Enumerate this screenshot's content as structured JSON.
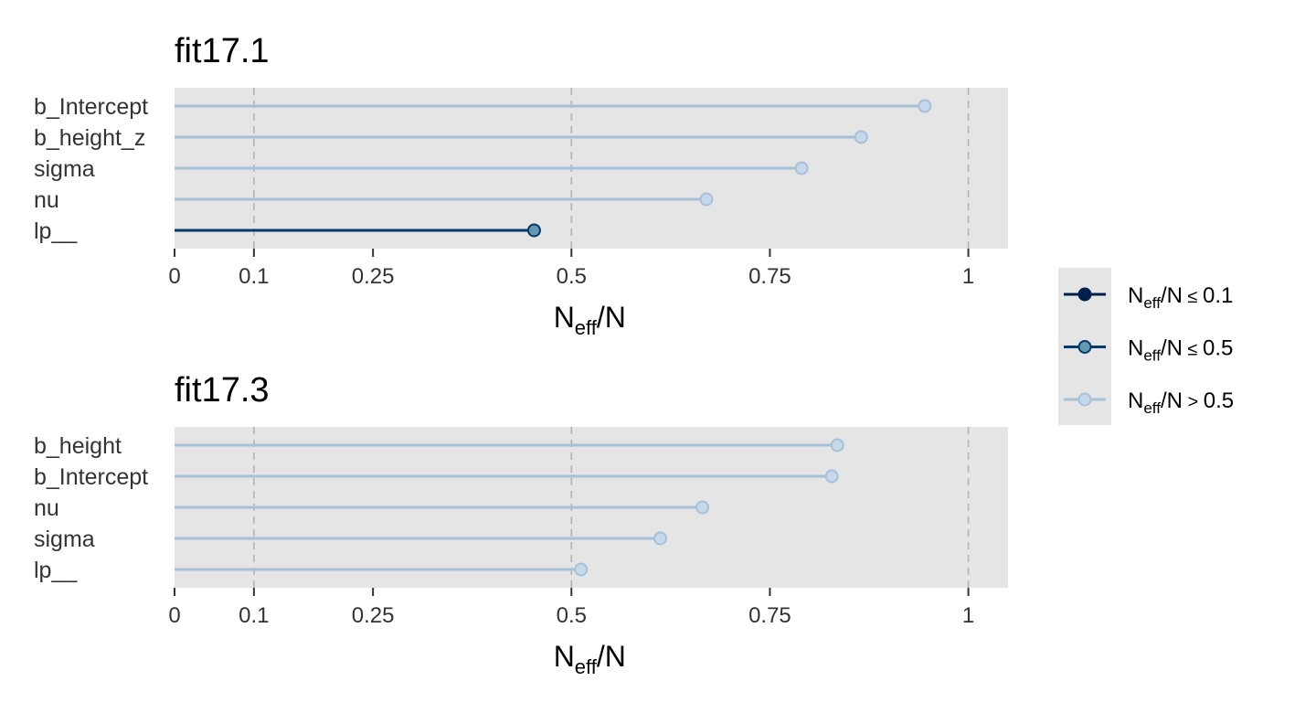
{
  "chart_data": [
    {
      "type": "lollipop",
      "title": "fit17.1",
      "xlabel": "Neff/N",
      "xlim": [
        0,
        1.05
      ],
      "xticks": [
        0,
        0.1,
        0.25,
        0.5,
        0.75,
        1
      ],
      "xtick_labels": [
        "0",
        "0.1",
        "0.25",
        "0.5",
        "0.75",
        "1"
      ],
      "reference_lines": [
        0.1,
        0.5,
        1
      ],
      "grid": false,
      "parameters": [
        "b_Intercept",
        "b_height_z",
        "sigma",
        "nu",
        "lp__"
      ],
      "values": [
        0.945,
        0.865,
        0.79,
        0.67,
        0.453
      ],
      "ratio_class": [
        "high",
        "high",
        "high",
        "high",
        "mid"
      ]
    },
    {
      "type": "lollipop",
      "title": "fit17.3",
      "xlabel": "Neff/N",
      "xlim": [
        0,
        1.05
      ],
      "xticks": [
        0,
        0.1,
        0.25,
        0.5,
        0.75,
        1
      ],
      "xtick_labels": [
        "0",
        "0.1",
        "0.25",
        "0.5",
        "0.75",
        "1"
      ],
      "reference_lines": [
        0.1,
        0.5,
        1
      ],
      "grid": false,
      "parameters": [
        "b_height",
        "b_Intercept",
        "nu",
        "sigma",
        "lp__"
      ],
      "values": [
        0.835,
        0.828,
        0.665,
        0.612,
        0.512
      ],
      "ratio_class": [
        "high",
        "high",
        "high",
        "high",
        "high"
      ]
    }
  ],
  "legend": {
    "placement": "right",
    "entries": [
      {
        "class": "low",
        "main": "N",
        "sub": "eff",
        "rest": "/N",
        "symbol": "≤",
        "threshold": "0.1"
      },
      {
        "class": "mid",
        "main": "N",
        "sub": "eff",
        "rest": "/N",
        "symbol": "≤",
        "threshold": "0.5"
      },
      {
        "class": "high",
        "main": "N",
        "sub": "eff",
        "rest": "/N",
        "symbol": ">",
        "threshold": "0.5"
      }
    ]
  },
  "colors": {
    "low": {
      "line": "#011f4b",
      "fill": "#011f4b",
      "stroke": "#011f4b"
    },
    "mid": {
      "line": "#03396c",
      "fill": "#6497b1",
      "stroke": "#03396c"
    },
    "high": {
      "line": "#a6c0d8",
      "fill": "#c6d9ea",
      "stroke": "#a6c0d8"
    },
    "panel_background": "#e5e5e5",
    "reference_line": "#b3b3b3"
  }
}
